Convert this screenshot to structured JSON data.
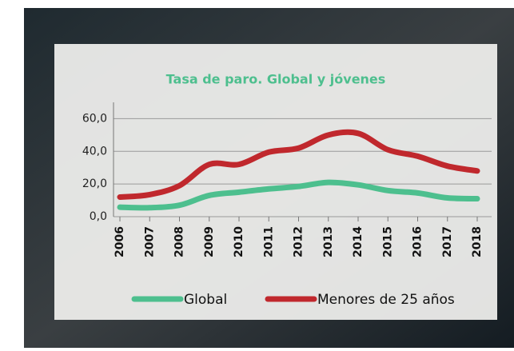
{
  "chart_data": {
    "type": "line",
    "title": "Tasa de paro. Global y jóvenes",
    "categories": [
      "2006",
      "2007",
      "2008",
      "2009",
      "2010",
      "2011",
      "2012",
      "2013",
      "2014",
      "2015",
      "2016",
      "2017",
      "2018"
    ],
    "series": [
      {
        "name": "Global",
        "color": "#4dbf8e",
        "values": [
          5.8,
          5.5,
          7,
          13,
          15,
          17,
          18.5,
          21,
          19.5,
          16,
          14.5,
          11.5,
          11
        ]
      },
      {
        "name": "Menores de 25 años",
        "color": "#c0282d",
        "values": [
          12,
          13.5,
          19,
          32,
          32,
          39.5,
          42,
          50,
          51,
          41,
          37,
          31,
          28
        ]
      }
    ],
    "ylim": [
      0,
      70
    ],
    "yticks": [
      {
        "value": 0,
        "label": "0,0"
      },
      {
        "value": 20,
        "label": "20,0"
      },
      {
        "value": 40,
        "label": "40,0"
      },
      {
        "value": 60,
        "label": "60,0"
      }
    ],
    "grid": true
  }
}
